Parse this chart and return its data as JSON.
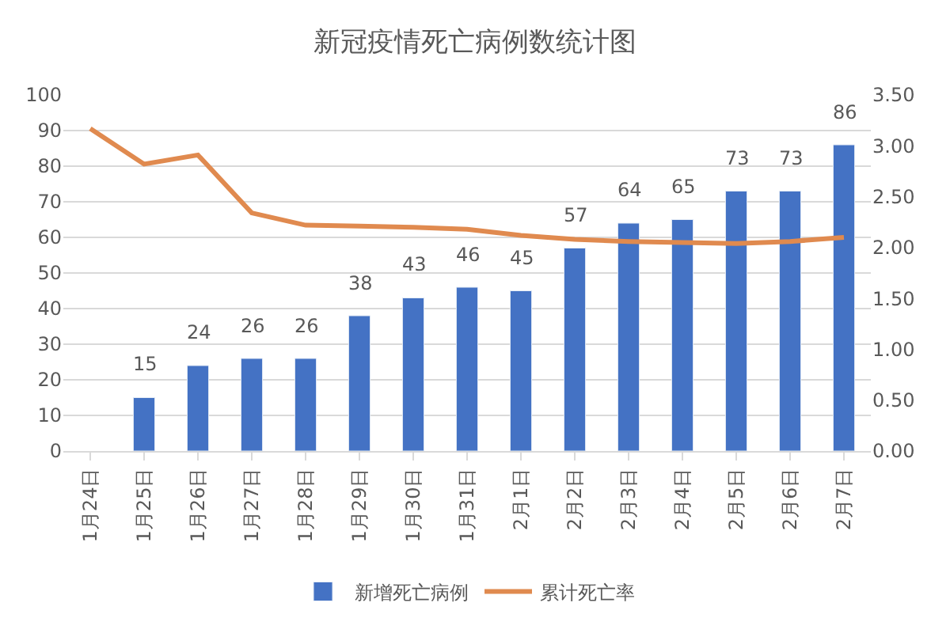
{
  "chart_data": {
    "type": "bar",
    "title": "新冠疫情死亡病例数统计图",
    "categories": [
      "1月24日",
      "1月25日",
      "1月26日",
      "1月27日",
      "1月28日",
      "1月29日",
      "1月30日",
      "1月31日",
      "2月1日",
      "2月2日",
      "2月3日",
      "2月4日",
      "2月5日",
      "2月6日",
      "2月7日"
    ],
    "series": [
      {
        "name": "新增死亡病例",
        "color": "#4472c4",
        "values": [
          null,
          15,
          24,
          26,
          26,
          38,
          43,
          46,
          45,
          57,
          64,
          65,
          73,
          73,
          86
        ],
        "value_labels": [
          null,
          "15",
          "24",
          "26",
          "26",
          "38",
          "43",
          "46",
          "45",
          "57",
          "64",
          "65",
          "73",
          "73",
          "86"
        ]
      },
      {
        "name": "累计死亡率",
        "type": "line",
        "axis": "y2",
        "color": "#e08a4f",
        "values": [
          3.17,
          2.82,
          2.91,
          2.34,
          2.22,
          2.21,
          2.2,
          2.18,
          2.12,
          2.08,
          2.06,
          2.05,
          2.04,
          2.06,
          2.1
        ]
      }
    ],
    "ylim": [
      0,
      100
    ],
    "yticks": [
      0,
      10,
      20,
      30,
      40,
      50,
      60,
      70,
      80,
      90,
      100
    ],
    "y2lim": [
      0,
      3.5
    ],
    "y2ticks": [
      {
        "value": 0,
        "label": "0.00"
      },
      {
        "value": 0.5,
        "label": "0.50"
      },
      {
        "value": 1,
        "label": "1.00"
      },
      {
        "value": 1.5,
        "label": "1.50"
      },
      {
        "value": 2,
        "label": "2.00"
      },
      {
        "value": 2.5,
        "label": "2.50"
      },
      {
        "value": 3,
        "label": "3.00"
      },
      {
        "value": 3.5,
        "label": "3.50"
      }
    ],
    "grid": "y",
    "legend": "bottom",
    "marker": "none"
  }
}
